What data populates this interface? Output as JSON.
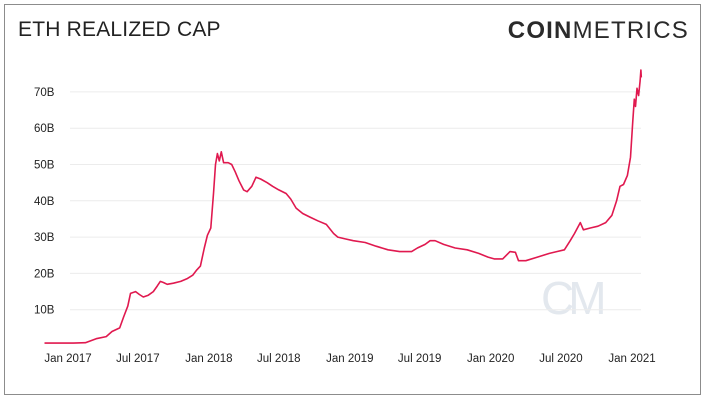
{
  "header": {
    "title": "ETH REALIZED CAP",
    "logo_bold": "COIN",
    "logo_light": "METRICS"
  },
  "watermark": "CM",
  "colors": {
    "line": "#e0194f",
    "grid": "#ececec",
    "text": "#222222",
    "frame": "#8c8c8c"
  },
  "chart_data": {
    "type": "line",
    "title": "ETH REALIZED CAP",
    "xlabel": "",
    "ylabel": "",
    "ylim": [
      0,
      75
    ],
    "y_ticks": [
      10,
      20,
      30,
      40,
      50,
      60,
      70
    ],
    "y_tick_labels": [
      "10B",
      "20B",
      "30B",
      "40B",
      "50B",
      "60B",
      "70B"
    ],
    "x_tick_labels": [
      "Jan 2017",
      "Jul 2017",
      "Jan 2018",
      "Jul 2018",
      "Jan 2019",
      "Jul 2019",
      "Jan 2020",
      "Jul 2020",
      "Jan 2021"
    ],
    "x_tick_dates": [
      "2017-01-01",
      "2017-07-01",
      "2018-01-01",
      "2018-07-01",
      "2019-01-01",
      "2019-07-01",
      "2020-01-01",
      "2020-07-01",
      "2021-01-01"
    ],
    "grid": true,
    "unit": "B",
    "series": [
      {
        "color": "#e0194f",
        "points": [
          [
            "2016-11-01",
            0.8
          ],
          [
            "2016-12-15",
            0.8
          ],
          [
            "2017-01-15",
            0.8
          ],
          [
            "2017-02-15",
            0.9
          ],
          [
            "2017-03-15",
            2.0
          ],
          [
            "2017-04-10",
            2.6
          ],
          [
            "2017-04-25",
            4.0
          ],
          [
            "2017-05-15",
            5.0
          ],
          [
            "2017-05-25",
            8.0
          ],
          [
            "2017-06-05",
            11.0
          ],
          [
            "2017-06-12",
            14.5
          ],
          [
            "2017-06-25",
            15.0
          ],
          [
            "2017-07-05",
            14.2
          ],
          [
            "2017-07-15",
            13.5
          ],
          [
            "2017-07-28",
            14.0
          ],
          [
            "2017-08-10",
            15.0
          ],
          [
            "2017-08-20",
            16.5
          ],
          [
            "2017-08-28",
            17.8
          ],
          [
            "2017-09-05",
            17.5
          ],
          [
            "2017-09-15",
            17.0
          ],
          [
            "2017-10-01",
            17.3
          ],
          [
            "2017-10-20",
            17.8
          ],
          [
            "2017-11-05",
            18.5
          ],
          [
            "2017-11-20",
            19.5
          ],
          [
            "2017-12-01",
            21.0
          ],
          [
            "2017-12-10",
            22.0
          ],
          [
            "2017-12-20",
            27.0
          ],
          [
            "2017-12-28",
            30.5
          ],
          [
            "2018-01-06",
            32.5
          ],
          [
            "2018-01-13",
            42.0
          ],
          [
            "2018-01-18",
            50.0
          ],
          [
            "2018-01-23",
            53.0
          ],
          [
            "2018-01-28",
            51.0
          ],
          [
            "2018-02-02",
            53.5
          ],
          [
            "2018-02-08",
            50.5
          ],
          [
            "2018-02-20",
            50.5
          ],
          [
            "2018-03-01",
            50.0
          ],
          [
            "2018-03-10",
            48.0
          ],
          [
            "2018-03-20",
            45.5
          ],
          [
            "2018-04-01",
            43.0
          ],
          [
            "2018-04-10",
            42.5
          ],
          [
            "2018-04-22",
            44.0
          ],
          [
            "2018-05-03",
            46.5
          ],
          [
            "2018-05-15",
            46.0
          ],
          [
            "2018-06-01",
            45.0
          ],
          [
            "2018-06-15",
            44.0
          ],
          [
            "2018-07-01",
            43.0
          ],
          [
            "2018-07-20",
            42.0
          ],
          [
            "2018-08-01",
            40.5
          ],
          [
            "2018-08-15",
            38.0
          ],
          [
            "2018-09-01",
            36.5
          ],
          [
            "2018-09-20",
            35.5
          ],
          [
            "2018-10-10",
            34.5
          ],
          [
            "2018-11-01",
            33.5
          ],
          [
            "2018-11-20",
            31.0
          ],
          [
            "2018-12-01",
            30.0
          ],
          [
            "2018-12-20",
            29.5
          ],
          [
            "2019-01-10",
            29.0
          ],
          [
            "2019-02-10",
            28.5
          ],
          [
            "2019-03-10",
            27.5
          ],
          [
            "2019-04-10",
            26.5
          ],
          [
            "2019-05-10",
            26.0
          ],
          [
            "2019-06-10",
            26.0
          ],
          [
            "2019-06-25",
            27.0
          ],
          [
            "2019-07-15",
            28.0
          ],
          [
            "2019-07-28",
            29.0
          ],
          [
            "2019-08-10",
            29.0
          ],
          [
            "2019-09-01",
            28.0
          ],
          [
            "2019-10-01",
            27.0
          ],
          [
            "2019-11-01",
            26.5
          ],
          [
            "2019-12-01",
            25.5
          ],
          [
            "2019-12-25",
            24.5
          ],
          [
            "2020-01-10",
            24.0
          ],
          [
            "2020-02-01",
            24.0
          ],
          [
            "2020-02-20",
            26.0
          ],
          [
            "2020-03-05",
            25.8
          ],
          [
            "2020-03-13",
            23.5
          ],
          [
            "2020-04-01",
            23.5
          ],
          [
            "2020-05-01",
            24.5
          ],
          [
            "2020-06-01",
            25.5
          ],
          [
            "2020-06-20",
            26.0
          ],
          [
            "2020-07-10",
            26.5
          ],
          [
            "2020-07-25",
            29.0
          ],
          [
            "2020-08-05",
            31.0
          ],
          [
            "2020-08-20",
            34.0
          ],
          [
            "2020-08-28",
            32.0
          ],
          [
            "2020-09-15",
            32.5
          ],
          [
            "2020-10-05",
            33.0
          ],
          [
            "2020-10-25",
            34.0
          ],
          [
            "2020-11-10",
            36.0
          ],
          [
            "2020-11-22",
            40.0
          ],
          [
            "2020-12-01",
            44.0
          ],
          [
            "2020-12-10",
            44.5
          ],
          [
            "2020-12-20",
            47.0
          ],
          [
            "2020-12-28",
            52.0
          ],
          [
            "2021-01-03",
            62.0
          ],
          [
            "2021-01-07",
            68.0
          ],
          [
            "2021-01-10",
            66.0
          ],
          [
            "2021-01-14",
            71.0
          ],
          [
            "2021-01-18",
            69.0
          ],
          [
            "2021-01-22",
            73.0
          ],
          [
            "2021-01-24",
            76.0
          ],
          [
            "2021-01-25",
            74.0
          ]
        ]
      }
    ]
  }
}
